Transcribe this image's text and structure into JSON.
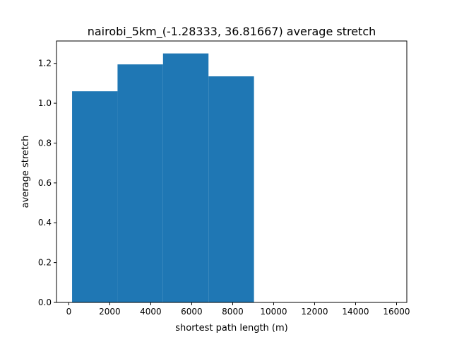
{
  "chart_data": {
    "type": "bar",
    "title": "nairobi_5km_(-1.28333, 36.81667) average stretch",
    "xlabel": "shortest path length (m)",
    "ylabel": "average stretch",
    "bins": [
      {
        "x0": 160,
        "x1": 2380,
        "value": 1.06
      },
      {
        "x0": 2380,
        "x1": 4600,
        "value": 1.195
      },
      {
        "x0": 4600,
        "x1": 6820,
        "value": 1.25
      },
      {
        "x0": 6820,
        "x1": 9040,
        "value": 1.135
      }
    ],
    "xlim": [
      -600,
      16500
    ],
    "ylim": [
      0,
      1.3125
    ],
    "xticks": [
      0,
      2000,
      4000,
      6000,
      8000,
      10000,
      12000,
      14000,
      16000
    ],
    "xtick_labels": [
      "0",
      "2000",
      "4000",
      "6000",
      "8000",
      "10000",
      "12000",
      "14000",
      "16000"
    ],
    "yticks": [
      0.0,
      0.2,
      0.4,
      0.6,
      0.8,
      1.0,
      1.2
    ],
    "ytick_labels": [
      "0.0",
      "0.2",
      "0.4",
      "0.6",
      "0.8",
      "1.0",
      "1.2"
    ],
    "bar_color": "#1f77b4",
    "grid": false,
    "legend": "none"
  }
}
